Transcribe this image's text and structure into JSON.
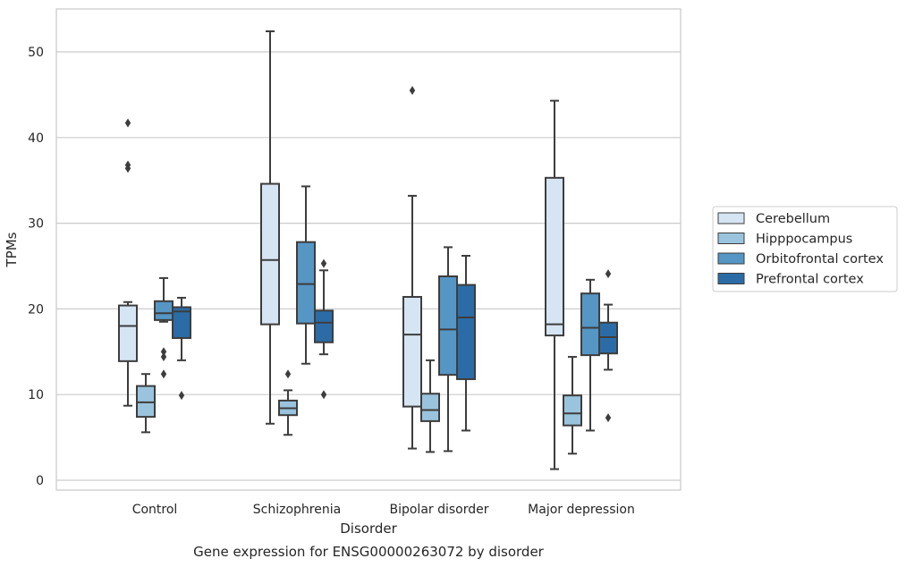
{
  "chart_data": {
    "type": "box",
    "xlabel": "Disorder",
    "ylabel": "TPMs",
    "caption": "Gene expression for ENSG00000263072 by disorder",
    "ylim": [
      -1,
      55
    ],
    "yticks": [
      0,
      10,
      20,
      30,
      40,
      50
    ],
    "grid": "horizontal",
    "legend_position": "right",
    "categories": [
      "Control",
      "Schizophrenia",
      "Bipolar disorder",
      "Major depression"
    ],
    "series": [
      {
        "name": "Cerebellum",
        "color": "#d6e5f4",
        "boxes": [
          {
            "whislo": 8.7,
            "q1": 13.9,
            "med": 18.0,
            "q3": 20.4,
            "whishi": 20.8,
            "fliers": [
              41.7,
              36.8,
              36.4
            ]
          },
          {
            "whislo": 6.6,
            "q1": 18.2,
            "med": 25.7,
            "q3": 34.6,
            "whishi": 52.4,
            "fliers": []
          },
          {
            "whislo": 3.7,
            "q1": 8.6,
            "med": 17.0,
            "q3": 21.4,
            "whishi": 33.2,
            "fliers": [
              45.5
            ]
          },
          {
            "whislo": 1.3,
            "q1": 16.9,
            "med": 18.2,
            "q3": 35.3,
            "whishi": 44.3,
            "fliers": []
          }
        ]
      },
      {
        "name": "Hipppocampus",
        "color": "#9ac4dd",
        "boxes": [
          {
            "whislo": 5.6,
            "q1": 7.4,
            "med": 9.1,
            "q3": 11.0,
            "whishi": 12.4,
            "fliers": []
          },
          {
            "whislo": 5.3,
            "q1": 7.6,
            "med": 8.4,
            "q3": 9.3,
            "whishi": 10.5,
            "fliers": [
              12.4
            ]
          },
          {
            "whislo": 3.3,
            "q1": 6.9,
            "med": 8.2,
            "q3": 10.1,
            "whishi": 14.0,
            "fliers": []
          },
          {
            "whislo": 3.1,
            "q1": 6.4,
            "med": 7.8,
            "q3": 9.9,
            "whishi": 14.4,
            "fliers": []
          }
        ]
      },
      {
        "name": "Orbitofrontal cortex",
        "color": "#5596c5",
        "boxes": [
          {
            "whislo": 18.5,
            "q1": 18.7,
            "med": 19.5,
            "q3": 20.9,
            "whishi": 23.6,
            "fliers": [
              15.0,
              14.4,
              12.4
            ]
          },
          {
            "whislo": 13.6,
            "q1": 18.3,
            "med": 22.9,
            "q3": 27.8,
            "whishi": 34.3,
            "fliers": []
          },
          {
            "whislo": 3.4,
            "q1": 12.3,
            "med": 17.6,
            "q3": 23.8,
            "whishi": 27.2,
            "fliers": []
          },
          {
            "whislo": 5.8,
            "q1": 14.6,
            "med": 17.8,
            "q3": 21.8,
            "whishi": 23.4,
            "fliers": []
          }
        ]
      },
      {
        "name": "Prefrontal cortex",
        "color": "#2b6ca6",
        "boxes": [
          {
            "whislo": 14.0,
            "q1": 16.6,
            "med": 19.7,
            "q3": 20.2,
            "whishi": 21.3,
            "fliers": [
              9.9
            ]
          },
          {
            "whislo": 14.7,
            "q1": 16.1,
            "med": 18.4,
            "q3": 19.8,
            "whishi": 24.5,
            "fliers": [
              25.3,
              10.0
            ]
          },
          {
            "whislo": 5.8,
            "q1": 11.8,
            "med": 19.0,
            "q3": 22.8,
            "whishi": 26.2,
            "fliers": []
          },
          {
            "whislo": 12.9,
            "q1": 14.8,
            "med": 16.7,
            "q3": 18.4,
            "whishi": 20.5,
            "fliers": [
              24.1,
              7.3
            ]
          }
        ]
      }
    ]
  }
}
